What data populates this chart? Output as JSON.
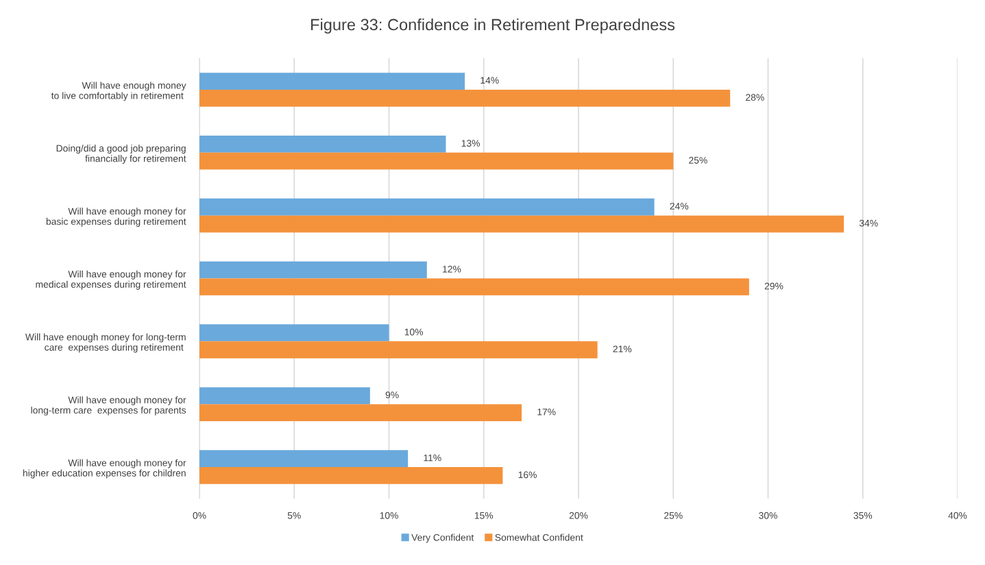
{
  "chart_data": {
    "type": "bar",
    "orientation": "horizontal",
    "title": "Figure 33: Confidence in Retirement Preparedness",
    "categories": [
      "Will have enough money\nto live comfortably in retirement ",
      "Doing/did a good job preparing\nfinancially for retirement",
      "Will have enough money for\nbasic expenses during retirement",
      "Will have enough money for\nmedical expenses during retirement",
      "Will have enough money for long-term\ncare  expenses during retirement ",
      "Will have enough money for\nlong-term care  expenses for parents",
      "Will have enough money for\nhigher education expenses for children"
    ],
    "series": [
      {
        "name": "Very Confident",
        "color": "#6aa9dc",
        "values": [
          14,
          13,
          24,
          12,
          10,
          9,
          11
        ],
        "value_labels": [
          "14%",
          "13%",
          "24%",
          "12%",
          "10%",
          "9%",
          "11%"
        ]
      },
      {
        "name": "Somewhat Confident",
        "color": "#f4923c",
        "values": [
          28,
          25,
          34,
          29,
          21,
          17,
          16
        ],
        "value_labels": [
          "28%",
          "25%",
          "34%",
          "29%",
          "21%",
          "17%",
          "16%"
        ]
      }
    ],
    "xlim": [
      0,
      40
    ],
    "xticks": [
      {
        "value": 0,
        "label": "0%"
      },
      {
        "value": 5,
        "label": "5%"
      },
      {
        "value": 10,
        "label": "10%"
      },
      {
        "value": 15,
        "label": "15%"
      },
      {
        "value": 20,
        "label": "20%"
      },
      {
        "value": 25,
        "label": "25%"
      },
      {
        "value": 30,
        "label": "30%"
      },
      {
        "value": 35,
        "label": "35%"
      },
      {
        "value": 40,
        "label": "40%"
      }
    ],
    "grid": "x",
    "legend": "bottom"
  }
}
